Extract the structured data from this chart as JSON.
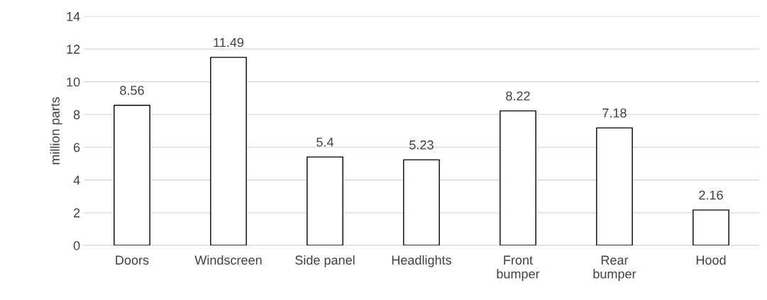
{
  "chart_data": {
    "type": "bar",
    "ylabel": "million parts",
    "categories": [
      "Doors",
      "Windscreen",
      "Side panel",
      "Headlights",
      "Front\nbumper",
      "Rear\nbumper",
      "Hood"
    ],
    "values": [
      8.56,
      11.49,
      5.4,
      5.23,
      8.22,
      7.18,
      2.16
    ],
    "color": "#ffffff",
    "ylim": [
      0,
      14
    ],
    "yticks": [
      0,
      2,
      4,
      6,
      8,
      10,
      12,
      14
    ],
    "grid": "y",
    "data_labels": true
  }
}
